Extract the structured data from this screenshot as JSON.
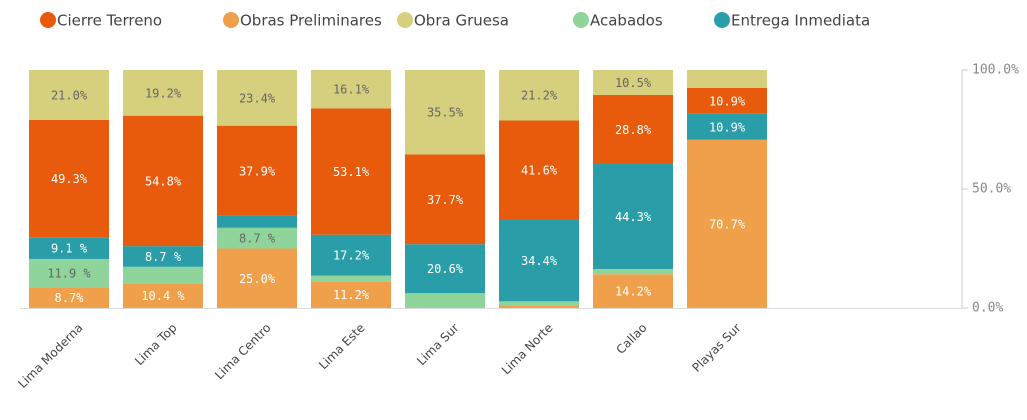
{
  "chart_data": {
    "type": "stacked_bar",
    "categories": [
      "Lima Moderna",
      "Lima Top",
      "Lima Centro",
      "Lima Este",
      "Lima Sur",
      "Lima Norte",
      "Callao",
      "Playas Sur"
    ],
    "series": [
      {
        "name": "Cierre Terreno",
        "color": "#e85a0c",
        "values": [
          49.3,
          54.8,
          37.9,
          53.1,
          37.7,
          41.6,
          28.8,
          10.9
        ],
        "value_labels": [
          "49.3%",
          "54.8%",
          "37.9%",
          "53.1%",
          "37.7%",
          "41.6%",
          "28.8%",
          "10.9%"
        ]
      },
      {
        "name": "Obras Preliminares",
        "color": "#f0a04b",
        "values": [
          8.7,
          10.4,
          25.0,
          11.2,
          0,
          1.0,
          14.2,
          70.7
        ],
        "value_labels": [
          "8.7%",
          "10.4 %",
          "25.0%",
          "11.2%",
          null,
          null,
          "14.2%",
          "70.7%"
        ]
      },
      {
        "name": "Obra Gruesa",
        "color": "#d6cf7d",
        "values": [
          21.0,
          19.2,
          23.4,
          16.1,
          35.5,
          21.2,
          10.5,
          7.5
        ],
        "value_labels": [
          "21.0%",
          "19.2%",
          "23.4%",
          "16.1%",
          "35.5%",
          "21.2%",
          "10.5%",
          null
        ]
      },
      {
        "name": "Acabados",
        "color": "#8fd49b",
        "values": [
          11.9,
          6.9,
          8.7,
          2.4,
          6.2,
          1.8,
          2.2,
          0
        ],
        "value_labels": [
          "11.9 %",
          null,
          "8.7 %",
          null,
          null,
          null,
          null,
          null
        ]
      },
      {
        "name": "Entrega Inmediata",
        "color": "#2a9ea8",
        "values": [
          9.1,
          8.7,
          5.0,
          17.2,
          20.6,
          34.4,
          44.3,
          10.9
        ],
        "value_labels": [
          "9.1 %",
          "8.7 %",
          null,
          "17.2%",
          "20.6%",
          "34.4%",
          "44.3%",
          "10.9%"
        ]
      }
    ],
    "ylim": [
      0,
      100
    ],
    "yticks": [
      {
        "value": 0,
        "label": "0.0%"
      },
      {
        "value": 50,
        "label": "50.0%"
      },
      {
        "value": 100,
        "label": "100.0%"
      }
    ],
    "grid": false
  }
}
